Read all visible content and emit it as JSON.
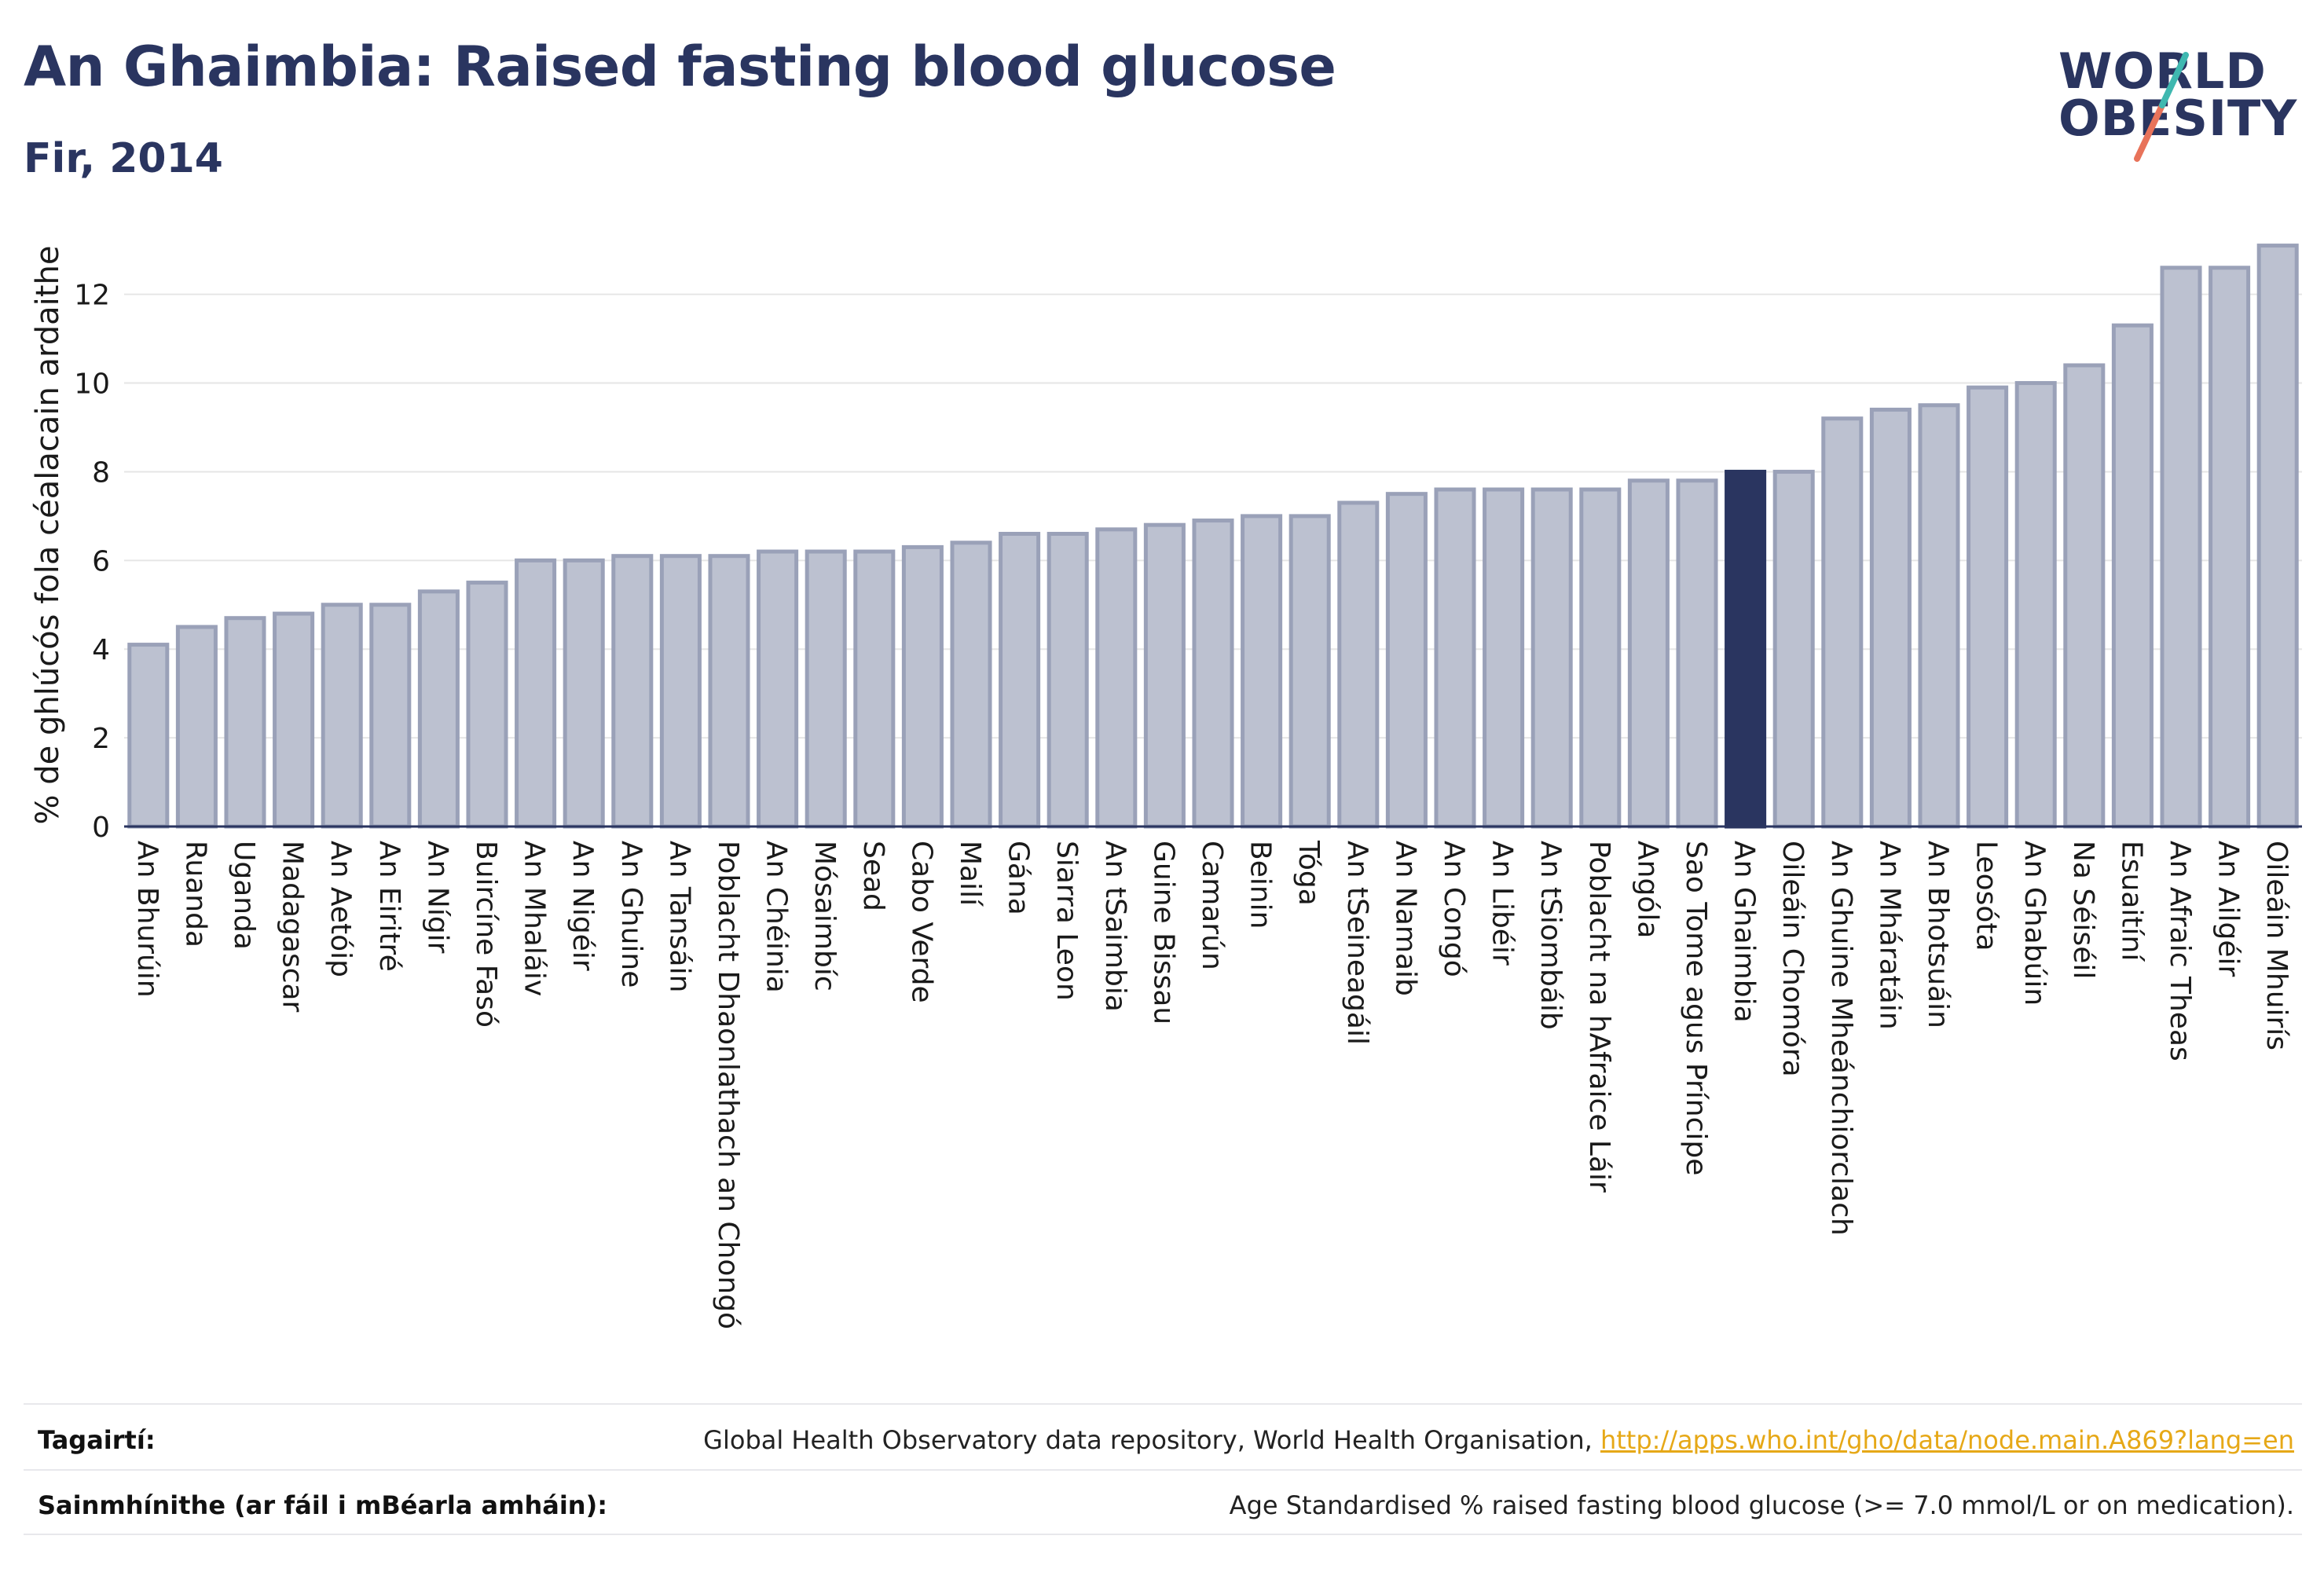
{
  "header": {
    "title": "An Ghaimbia: Raised fasting blood glucose",
    "subtitle": "Fir, 2014"
  },
  "logo": {
    "line1": "WORLD",
    "line2": "OBESITY",
    "accent_colors": [
      "#3fb8b0",
      "#e8735a"
    ]
  },
  "colors": {
    "bar": "#bcc1d0",
    "bar_border": "#9aa1b8",
    "highlight": "#2a3560",
    "grid": "#e6e6e6",
    "axis_text": "#1a1a1a"
  },
  "chart_data": {
    "type": "bar",
    "ylabel": "% de ghlúcós fola céalacain ardaithe",
    "xlabel": "",
    "ylim": [
      0,
      13.5
    ],
    "yticks": [
      0,
      2,
      4,
      6,
      8,
      10,
      12
    ],
    "grid": true,
    "highlight": "An Ghaimbia",
    "categories": [
      "An Bhurúin",
      "Ruanda",
      "Uganda",
      "Madagascar",
      "An Aetóip",
      "An Eiritré",
      "An Nígir",
      "Buircíne Fasó",
      "An Mhaláiv",
      "An Nigéir",
      "An Ghuine",
      "An Tansáin",
      "Poblacht Dhaonlathach an Chongó",
      "An Chéinia",
      "Mósaimbíc",
      "Sead",
      "Cabo Verde",
      "Mailí",
      "Gána",
      "Siarra Leon",
      "An tSaimbia",
      "Guine Bissau",
      "Camarún",
      "Beinin",
      "Tóga",
      "An tSeineagáil",
      "An Namaib",
      "An Congó",
      "An Libéir",
      "An tSiombáib",
      "Poblacht na hAfraice Láir",
      "Angóla",
      "Sao Tome agus Príncipe",
      "An Ghaimbia",
      "Oileáin Chomóra",
      "An Ghuine Mheánchiorclach",
      "An Mháratáin",
      "An Bhotsuáin",
      "Leosóta",
      "An Ghabúin",
      "Na Séiséil",
      "Esuaitíní",
      "An Afraic Theas",
      "An Ailgéir",
      "Oileáin Mhuirís"
    ],
    "values": [
      4.1,
      4.5,
      4.7,
      4.8,
      5.0,
      5.0,
      5.3,
      5.5,
      6.0,
      6.0,
      6.1,
      6.1,
      6.1,
      6.2,
      6.2,
      6.2,
      6.3,
      6.4,
      6.6,
      6.6,
      6.7,
      6.8,
      6.9,
      7.0,
      7.0,
      7.3,
      7.5,
      7.6,
      7.6,
      7.6,
      7.6,
      7.8,
      7.8,
      8.0,
      8.0,
      9.2,
      9.4,
      9.5,
      9.9,
      10.0,
      10.4,
      11.3,
      12.6,
      12.6,
      13.1
    ]
  },
  "footer": {
    "references_label": "Tagairtí:",
    "references_text": "Global Health Observatory data repository, World Health Organisation, ",
    "references_link": "http://apps.who.int/gho/data/node.main.A869?lang=en",
    "definitions_label": "Sainmhínithe (ar fáil i mBéarla amháin):",
    "definitions_text": "Age Standardised % raised fasting blood glucose (>= 7.0 mmol/L or on medication)."
  }
}
